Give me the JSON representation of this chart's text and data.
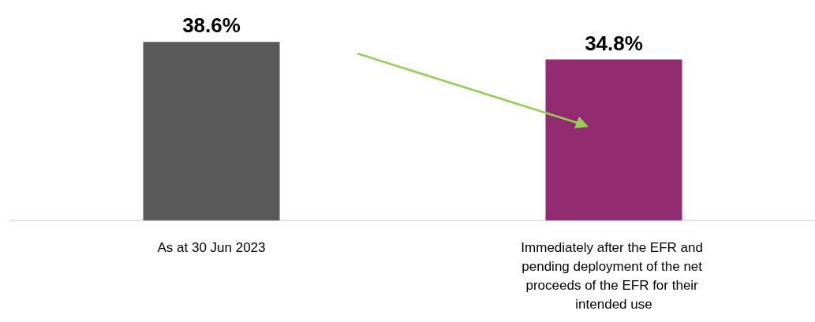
{
  "chart_data": {
    "type": "bar",
    "categories": [
      "As at 30 Jun 2023",
      "Immediately after the EFR and pending deployment of the net proceeds of the EFR for their intended use"
    ],
    "values": [
      38.6,
      34.8
    ],
    "colors": [
      "#595959",
      "#922b70"
    ],
    "value_labels": [
      "38.6%",
      "34.8%"
    ]
  }
}
